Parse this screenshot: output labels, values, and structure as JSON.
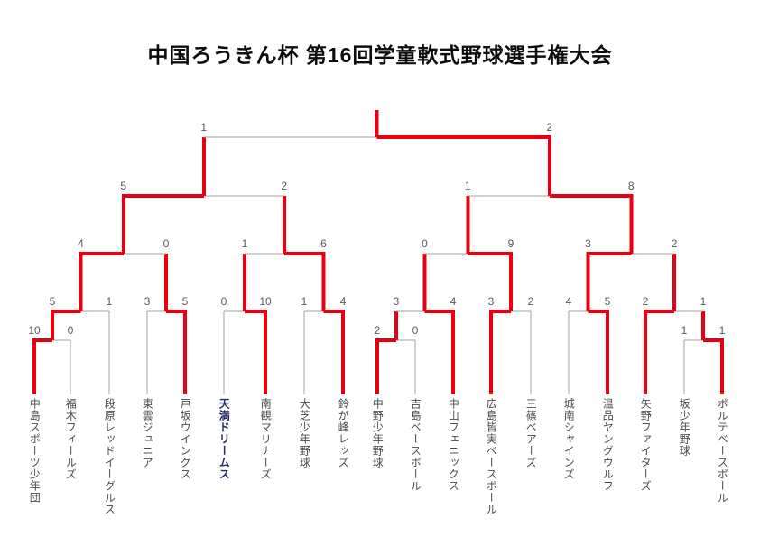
{
  "title": "中国ろうきん杯 第16回学童軟式野球選手権大会",
  "teams": [
    {
      "name": "中島スポーツ少年団",
      "highlight": false
    },
    {
      "name": "福木フィールズ",
      "highlight": false
    },
    {
      "name": "段原レッドイーグルス",
      "highlight": false
    },
    {
      "name": "東雲ジュニア",
      "highlight": false
    },
    {
      "name": "戸坂ウイングス",
      "highlight": false
    },
    {
      "name": "天満ドリームス",
      "highlight": true
    },
    {
      "name": "南観マリナーズ",
      "highlight": false
    },
    {
      "name": "大芝少年野球",
      "highlight": false
    },
    {
      "name": "鈴が峰レッズ",
      "highlight": false
    },
    {
      "name": "中野少年野球",
      "highlight": false
    },
    {
      "name": "吉島ベースボール",
      "highlight": false
    },
    {
      "name": "中山フェニックス",
      "highlight": false
    },
    {
      "name": "広島皆実ベースボール",
      "highlight": false
    },
    {
      "name": "三篠ベアーズ",
      "highlight": false
    },
    {
      "name": "城南シャインズ",
      "highlight": false
    },
    {
      "name": "温品ヤングウルフ",
      "highlight": false
    },
    {
      "name": "矢野ファイターズ",
      "highlight": false
    },
    {
      "name": "坂少年野球",
      "highlight": false
    },
    {
      "name": "ポルテベースボール",
      "highlight": false
    }
  ],
  "bracket": {
    "matches": [
      {
        "id": "m1",
        "round": 1,
        "left": {
          "team": 0
        },
        "right": {
          "team": 1
        },
        "score_left": "10",
        "score_right": "0",
        "winner": "left"
      },
      {
        "id": "m2",
        "round": 1,
        "left": {
          "team": 9
        },
        "right": {
          "team": 10
        },
        "score_left": "2",
        "score_right": "0",
        "winner": "left"
      },
      {
        "id": "m3",
        "round": 1,
        "left": {
          "team": 17
        },
        "right": {
          "team": 18
        },
        "score_left": "1",
        "score_right": "1",
        "winner": "right"
      },
      {
        "id": "m4",
        "round": 2,
        "left": {
          "winner_of": "m1"
        },
        "right": {
          "team": 2
        },
        "score_left": "5",
        "score_right": "1",
        "winner": "left"
      },
      {
        "id": "m5",
        "round": 2,
        "left": {
          "team": 3
        },
        "right": {
          "team": 4
        },
        "score_left": "3",
        "score_right": "5",
        "winner": "right"
      },
      {
        "id": "m6",
        "round": 2,
        "left": {
          "team": 5
        },
        "right": {
          "team": 6
        },
        "score_left": "0",
        "score_right": "10",
        "winner": "right"
      },
      {
        "id": "m7",
        "round": 2,
        "left": {
          "team": 7
        },
        "right": {
          "team": 8
        },
        "score_left": "1",
        "score_right": "4",
        "winner": "right"
      },
      {
        "id": "m8",
        "round": 2,
        "left": {
          "winner_of": "m2"
        },
        "right": {
          "team": 11
        },
        "score_left": "3",
        "score_right": "4",
        "winner": "right"
      },
      {
        "id": "m9",
        "round": 2,
        "left": {
          "team": 12
        },
        "right": {
          "team": 13
        },
        "score_left": "3",
        "score_right": "2",
        "winner": "left"
      },
      {
        "id": "m10",
        "round": 2,
        "left": {
          "team": 14
        },
        "right": {
          "team": 15
        },
        "score_left": "4",
        "score_right": "5",
        "winner": "right"
      },
      {
        "id": "m11",
        "round": 2,
        "left": {
          "team": 16
        },
        "right": {
          "winner_of": "m3"
        },
        "score_left": "2",
        "score_right": "1",
        "winner": "left"
      },
      {
        "id": "m12",
        "round": 3,
        "left": {
          "winner_of": "m4"
        },
        "right": {
          "winner_of": "m5"
        },
        "score_left": "4",
        "score_right": "0",
        "winner": "left"
      },
      {
        "id": "m13",
        "round": 3,
        "left": {
          "winner_of": "m6"
        },
        "right": {
          "winner_of": "m7"
        },
        "score_left": "1",
        "score_right": "6",
        "winner": "right"
      },
      {
        "id": "m14",
        "round": 3,
        "left": {
          "winner_of": "m8"
        },
        "right": {
          "winner_of": "m9"
        },
        "score_left": "0",
        "score_right": "9",
        "winner": "right"
      },
      {
        "id": "m15",
        "round": 3,
        "left": {
          "winner_of": "m10"
        },
        "right": {
          "winner_of": "m11"
        },
        "score_left": "3",
        "score_right": "2",
        "winner": "left"
      },
      {
        "id": "m16",
        "round": 4,
        "left": {
          "winner_of": "m12"
        },
        "right": {
          "winner_of": "m13"
        },
        "score_left": "5",
        "score_right": "2",
        "winner": "left"
      },
      {
        "id": "m17",
        "round": 4,
        "left": {
          "winner_of": "m14"
        },
        "right": {
          "winner_of": "m15"
        },
        "score_left": "1",
        "score_right": "8",
        "winner": "right"
      },
      {
        "id": "m18",
        "round": 5,
        "left": {
          "winner_of": "m16"
        },
        "right": {
          "winner_of": "m17"
        },
        "score_left": "1",
        "score_right": "2",
        "winner": "right"
      }
    ]
  },
  "colors": {
    "winner_path": "#e60012",
    "bracket_line": "#a3a3a3",
    "score_text": "#595959",
    "team_text": "#4a4a4a",
    "highlight_team_text": "#232a63",
    "title_text": "#0d0d0d",
    "background": "#ffffff"
  }
}
